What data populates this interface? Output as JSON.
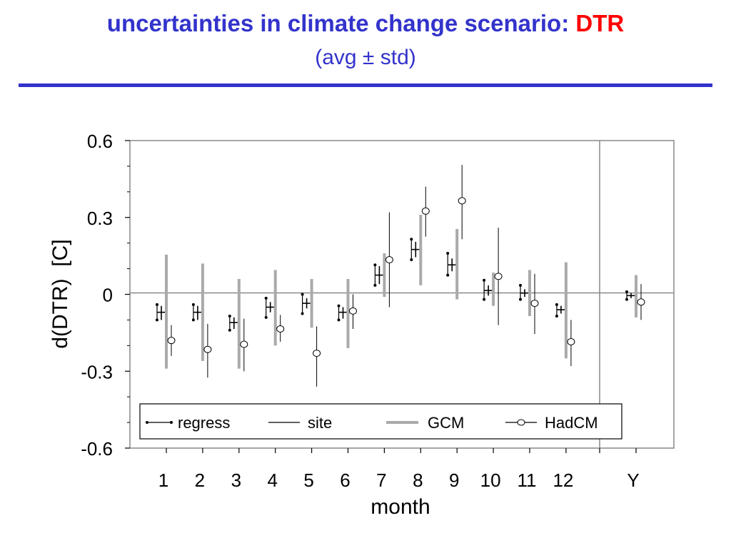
{
  "header": {
    "title_main": "uncertainties in climate change scenario:",
    "title_highlight": "DTR",
    "subtitle": "(avg ± std)",
    "accent_color": "#3333cc",
    "highlight_color": "#ff0000"
  },
  "chart_data": {
    "type": "errorbar",
    "xlabel": "month",
    "ylabel": "d(DTR)  [C]",
    "ylim": [
      -0.6,
      0.6
    ],
    "yticks": [
      0.6,
      0.3,
      0,
      -0.3,
      -0.6
    ],
    "ytick_labels": [
      "0.6",
      "0.3",
      "0",
      "-0.3",
      "-0.6"
    ],
    "categories": [
      "1",
      "2",
      "3",
      "4",
      "5",
      "6",
      "7",
      "8",
      "9",
      "10",
      "11",
      "12",
      "Y"
    ],
    "legend": {
      "position": "bottom",
      "entries": [
        "regress",
        "site",
        "GCM",
        "HadCM"
      ]
    },
    "series": [
      {
        "name": "regress",
        "color": "#000000",
        "values": [
          -0.07,
          -0.07,
          -0.11,
          -0.05,
          -0.035,
          -0.07,
          0.075,
          0.175,
          0.115,
          0.015,
          0.005,
          -0.06,
          -0.005
        ],
        "low": [
          -0.1,
          -0.1,
          -0.14,
          -0.09,
          -0.075,
          -0.1,
          0.035,
          0.135,
          0.075,
          -0.02,
          -0.02,
          -0.085,
          -0.02
        ],
        "high": [
          -0.04,
          -0.04,
          -0.085,
          -0.015,
          0.0,
          -0.045,
          0.115,
          0.215,
          0.16,
          0.055,
          0.035,
          -0.04,
          0.01
        ]
      },
      {
        "name": "site",
        "color": "#000000",
        "values": [
          -0.07,
          -0.07,
          -0.11,
          -0.05,
          -0.035,
          -0.07,
          0.075,
          0.175,
          0.115,
          0.015,
          0.005,
          -0.06,
          -0.005
        ],
        "low": [
          -0.1,
          -0.1,
          -0.135,
          -0.07,
          -0.055,
          -0.095,
          0.04,
          0.145,
          0.09,
          -0.005,
          -0.01,
          -0.075,
          -0.015
        ],
        "high": [
          -0.045,
          -0.045,
          -0.09,
          -0.03,
          -0.015,
          -0.05,
          0.11,
          0.205,
          0.14,
          0.035,
          0.02,
          -0.045,
          0.005
        ]
      },
      {
        "name": "GCM",
        "color": "#aaaaaa",
        "values": [
          -0.07,
          -0.07,
          -0.11,
          -0.05,
          -0.035,
          -0.075,
          0.075,
          0.175,
          0.115,
          0.015,
          0.005,
          -0.065,
          -0.01
        ],
        "low": [
          -0.29,
          -0.26,
          -0.29,
          -0.2,
          -0.13,
          -0.21,
          -0.01,
          0.035,
          -0.02,
          -0.045,
          -0.085,
          -0.25,
          -0.09
        ],
        "high": [
          0.155,
          0.12,
          0.06,
          0.095,
          0.06,
          0.06,
          0.16,
          0.31,
          0.255,
          0.085,
          0.095,
          0.125,
          0.075
        ]
      },
      {
        "name": "HadCM",
        "color": "#000000",
        "values": [
          -0.18,
          -0.215,
          -0.195,
          -0.135,
          -0.23,
          -0.065,
          0.135,
          0.325,
          0.365,
          0.07,
          -0.035,
          -0.185,
          -0.03
        ],
        "low": [
          -0.24,
          -0.325,
          -0.3,
          -0.185,
          -0.36,
          -0.135,
          -0.05,
          0.225,
          0.215,
          -0.12,
          -0.155,
          -0.28,
          -0.1
        ],
        "high": [
          -0.12,
          -0.115,
          -0.095,
          -0.08,
          -0.125,
          0.0,
          0.32,
          0.42,
          0.505,
          0.26,
          0.08,
          -0.1,
          0.04
        ]
      }
    ]
  }
}
